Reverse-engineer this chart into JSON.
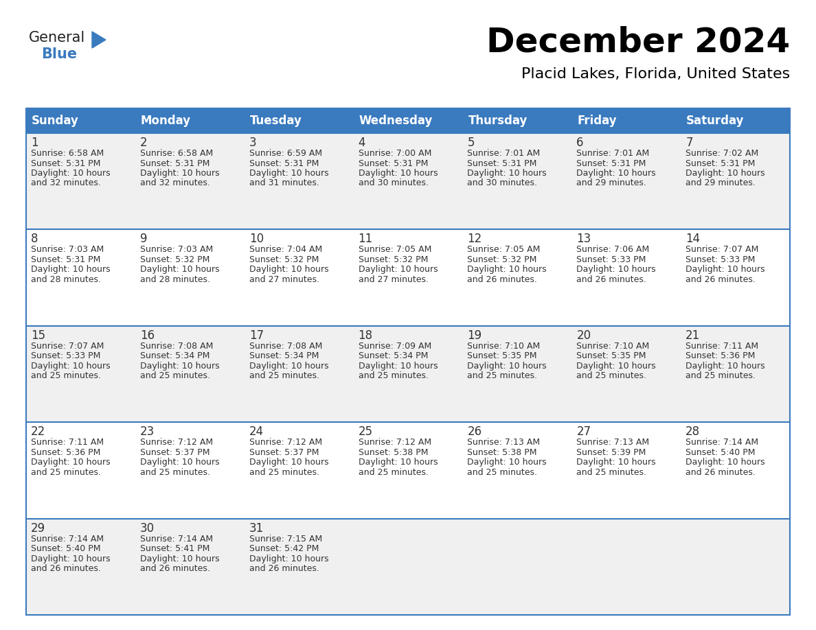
{
  "title": "December 2024",
  "subtitle": "Placid Lakes, Florida, United States",
  "header_bg_color": "#3a7abf",
  "header_text_color": "#ffffff",
  "cell_bg_odd": "#f0f0f0",
  "cell_bg_even": "#ffffff",
  "border_color": "#3a7abf",
  "text_color": "#333333",
  "day_number_color": "#333333",
  "logo_general_color": "#222222",
  "logo_blue_color": "#3a7abf",
  "logo_triangle_color": "#3a7abf",
  "day_headers": [
    "Sunday",
    "Monday",
    "Tuesday",
    "Wednesday",
    "Thursday",
    "Friday",
    "Saturday"
  ],
  "weeks": [
    [
      {
        "day": 1,
        "sunrise": "6:58 AM",
        "sunset": "5:31 PM",
        "daylight_hrs": 10,
        "daylight_min": 32
      },
      {
        "day": 2,
        "sunrise": "6:58 AM",
        "sunset": "5:31 PM",
        "daylight_hrs": 10,
        "daylight_min": 32
      },
      {
        "day": 3,
        "sunrise": "6:59 AM",
        "sunset": "5:31 PM",
        "daylight_hrs": 10,
        "daylight_min": 31
      },
      {
        "day": 4,
        "sunrise": "7:00 AM",
        "sunset": "5:31 PM",
        "daylight_hrs": 10,
        "daylight_min": 30
      },
      {
        "day": 5,
        "sunrise": "7:01 AM",
        "sunset": "5:31 PM",
        "daylight_hrs": 10,
        "daylight_min": 30
      },
      {
        "day": 6,
        "sunrise": "7:01 AM",
        "sunset": "5:31 PM",
        "daylight_hrs": 10,
        "daylight_min": 29
      },
      {
        "day": 7,
        "sunrise": "7:02 AM",
        "sunset": "5:31 PM",
        "daylight_hrs": 10,
        "daylight_min": 29
      }
    ],
    [
      {
        "day": 8,
        "sunrise": "7:03 AM",
        "sunset": "5:31 PM",
        "daylight_hrs": 10,
        "daylight_min": 28
      },
      {
        "day": 9,
        "sunrise": "7:03 AM",
        "sunset": "5:32 PM",
        "daylight_hrs": 10,
        "daylight_min": 28
      },
      {
        "day": 10,
        "sunrise": "7:04 AM",
        "sunset": "5:32 PM",
        "daylight_hrs": 10,
        "daylight_min": 27
      },
      {
        "day": 11,
        "sunrise": "7:05 AM",
        "sunset": "5:32 PM",
        "daylight_hrs": 10,
        "daylight_min": 27
      },
      {
        "day": 12,
        "sunrise": "7:05 AM",
        "sunset": "5:32 PM",
        "daylight_hrs": 10,
        "daylight_min": 26
      },
      {
        "day": 13,
        "sunrise": "7:06 AM",
        "sunset": "5:33 PM",
        "daylight_hrs": 10,
        "daylight_min": 26
      },
      {
        "day": 14,
        "sunrise": "7:07 AM",
        "sunset": "5:33 PM",
        "daylight_hrs": 10,
        "daylight_min": 26
      }
    ],
    [
      {
        "day": 15,
        "sunrise": "7:07 AM",
        "sunset": "5:33 PM",
        "daylight_hrs": 10,
        "daylight_min": 25
      },
      {
        "day": 16,
        "sunrise": "7:08 AM",
        "sunset": "5:34 PM",
        "daylight_hrs": 10,
        "daylight_min": 25
      },
      {
        "day": 17,
        "sunrise": "7:08 AM",
        "sunset": "5:34 PM",
        "daylight_hrs": 10,
        "daylight_min": 25
      },
      {
        "day": 18,
        "sunrise": "7:09 AM",
        "sunset": "5:34 PM",
        "daylight_hrs": 10,
        "daylight_min": 25
      },
      {
        "day": 19,
        "sunrise": "7:10 AM",
        "sunset": "5:35 PM",
        "daylight_hrs": 10,
        "daylight_min": 25
      },
      {
        "day": 20,
        "sunrise": "7:10 AM",
        "sunset": "5:35 PM",
        "daylight_hrs": 10,
        "daylight_min": 25
      },
      {
        "day": 21,
        "sunrise": "7:11 AM",
        "sunset": "5:36 PM",
        "daylight_hrs": 10,
        "daylight_min": 25
      }
    ],
    [
      {
        "day": 22,
        "sunrise": "7:11 AM",
        "sunset": "5:36 PM",
        "daylight_hrs": 10,
        "daylight_min": 25
      },
      {
        "day": 23,
        "sunrise": "7:12 AM",
        "sunset": "5:37 PM",
        "daylight_hrs": 10,
        "daylight_min": 25
      },
      {
        "day": 24,
        "sunrise": "7:12 AM",
        "sunset": "5:37 PM",
        "daylight_hrs": 10,
        "daylight_min": 25
      },
      {
        "day": 25,
        "sunrise": "7:12 AM",
        "sunset": "5:38 PM",
        "daylight_hrs": 10,
        "daylight_min": 25
      },
      {
        "day": 26,
        "sunrise": "7:13 AM",
        "sunset": "5:38 PM",
        "daylight_hrs": 10,
        "daylight_min": 25
      },
      {
        "day": 27,
        "sunrise": "7:13 AM",
        "sunset": "5:39 PM",
        "daylight_hrs": 10,
        "daylight_min": 25
      },
      {
        "day": 28,
        "sunrise": "7:14 AM",
        "sunset": "5:40 PM",
        "daylight_hrs": 10,
        "daylight_min": 26
      }
    ],
    [
      {
        "day": 29,
        "sunrise": "7:14 AM",
        "sunset": "5:40 PM",
        "daylight_hrs": 10,
        "daylight_min": 26
      },
      {
        "day": 30,
        "sunrise": "7:14 AM",
        "sunset": "5:41 PM",
        "daylight_hrs": 10,
        "daylight_min": 26
      },
      {
        "day": 31,
        "sunrise": "7:15 AM",
        "sunset": "5:42 PM",
        "daylight_hrs": 10,
        "daylight_min": 26
      },
      null,
      null,
      null,
      null
    ]
  ]
}
